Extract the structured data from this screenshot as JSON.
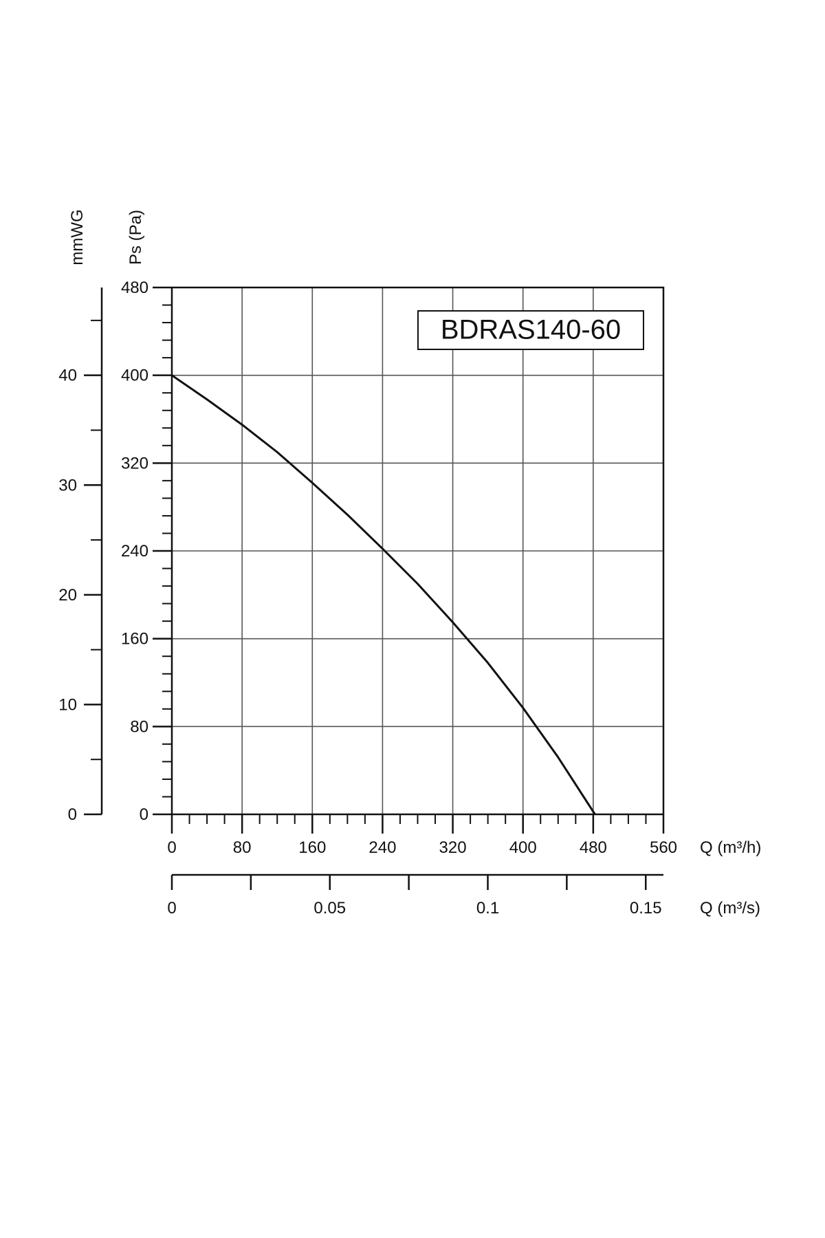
{
  "chart_data": {
    "type": "line",
    "title": "BDRAS140-60",
    "xlabel": "Q (m³/h)",
    "x2label": "Q (m³/s)",
    "ylabel": "Ps (Pa)",
    "y2label": "mmWG",
    "xlim": [
      0,
      560
    ],
    "ylim": [
      0,
      480
    ],
    "x2lim": [
      0,
      0.1556
    ],
    "y2lim": [
      0,
      48
    ],
    "x_ticks": [
      "0",
      "80",
      "160",
      "240",
      "320",
      "400",
      "480",
      "560"
    ],
    "y_ticks": [
      "0",
      "80",
      "160",
      "240",
      "320",
      "400",
      "480"
    ],
    "x2_ticks": [
      "0",
      "0.05",
      "0.1",
      "0.15"
    ],
    "y2_ticks": [
      "0",
      "10",
      "20",
      "30",
      "40"
    ],
    "grid": true,
    "series": [
      {
        "x": [
          0,
          40,
          80,
          120,
          160,
          200,
          240,
          280,
          320,
          360,
          400,
          440,
          482
        ],
        "y": [
          400,
          378,
          355,
          330,
          302,
          273,
          242,
          210,
          175,
          138,
          97,
          52,
          0
        ]
      }
    ]
  }
}
